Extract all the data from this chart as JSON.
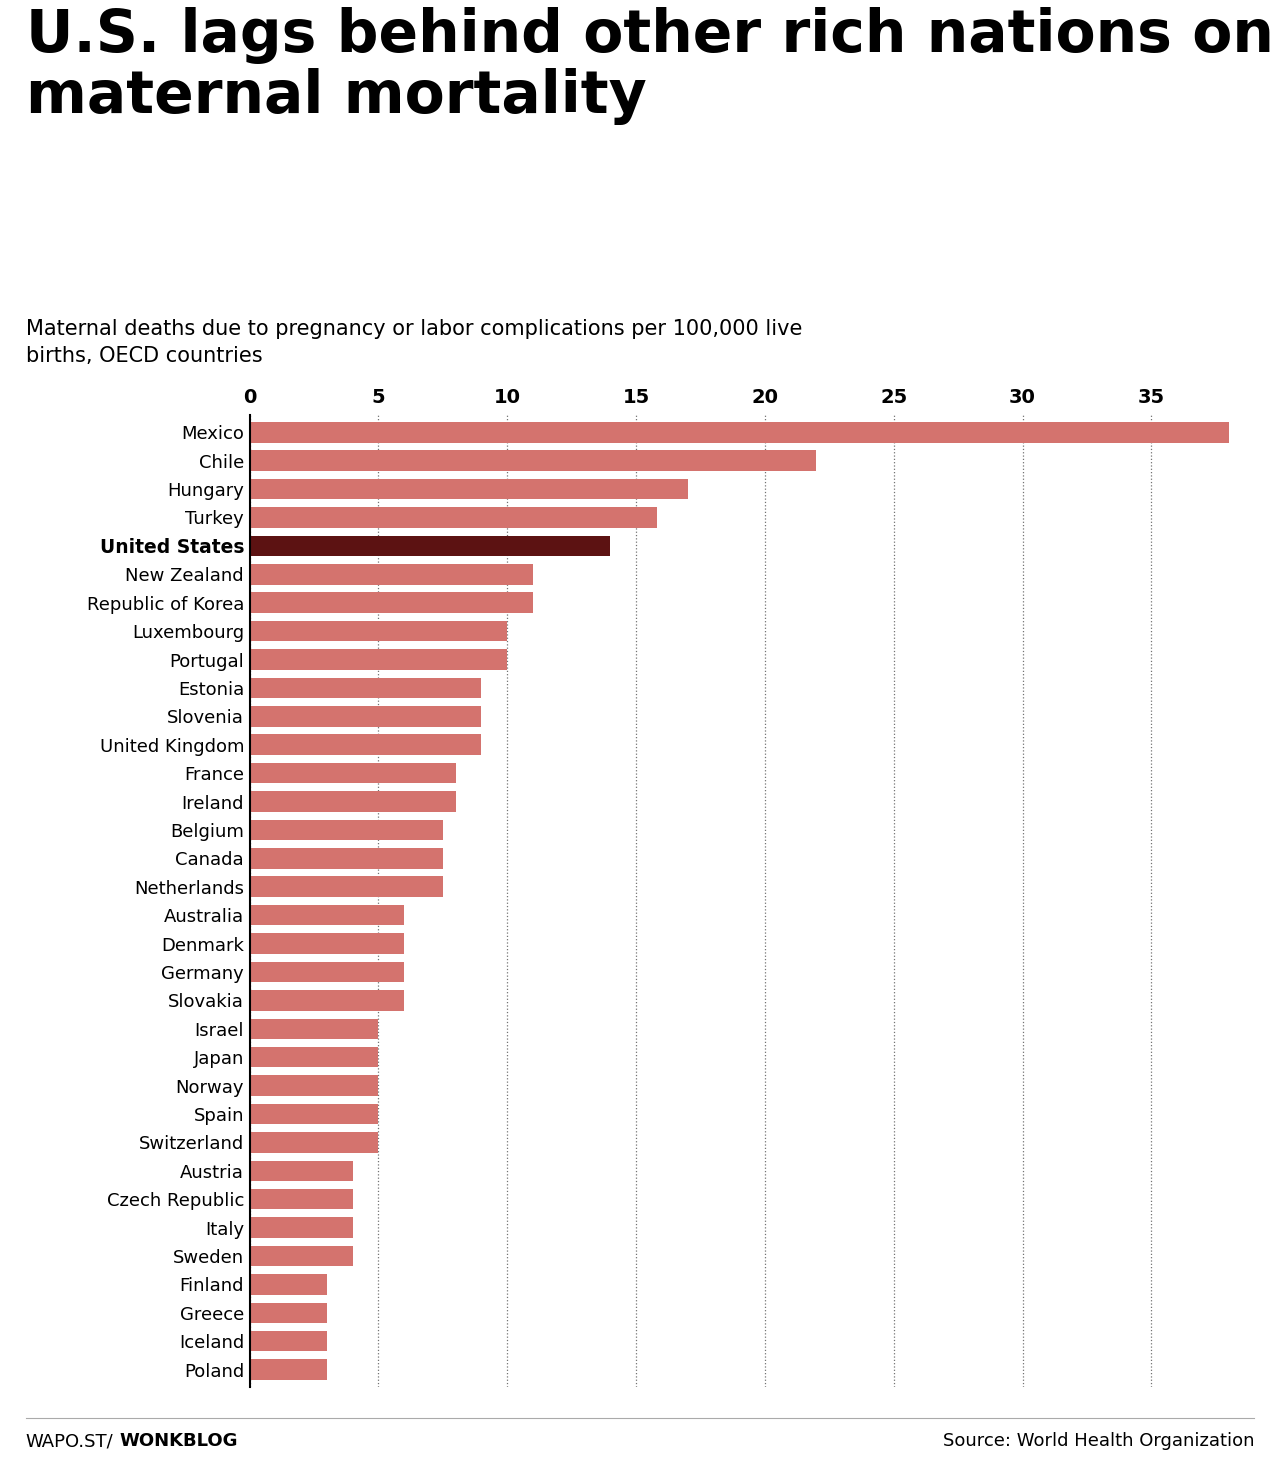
{
  "title": "U.S. lags behind other rich nations on\nmaternal mortality",
  "subtitle": "Maternal deaths due to pregnancy or labor complications per 100,000 live\nbirths, OECD countries",
  "countries": [
    "Mexico",
    "Chile",
    "Hungary",
    "Turkey",
    "United States",
    "New Zealand",
    "Republic of Korea",
    "Luxembourg",
    "Portugal",
    "Estonia",
    "Slovenia",
    "United Kingdom",
    "France",
    "Ireland",
    "Belgium",
    "Canada",
    "Netherlands",
    "Australia",
    "Denmark",
    "Germany",
    "Slovakia",
    "Israel",
    "Japan",
    "Norway",
    "Spain",
    "Switzerland",
    "Austria",
    "Czech Republic",
    "Italy",
    "Sweden",
    "Finland",
    "Greece",
    "Iceland",
    "Poland"
  ],
  "values": [
    38.0,
    22.0,
    17.0,
    15.8,
    14.0,
    11.0,
    11.0,
    10.0,
    10.0,
    9.0,
    9.0,
    9.0,
    8.0,
    8.0,
    7.5,
    7.5,
    7.5,
    6.0,
    6.0,
    6.0,
    6.0,
    5.0,
    5.0,
    5.0,
    5.0,
    5.0,
    4.0,
    4.0,
    4.0,
    4.0,
    3.0,
    3.0,
    3.0,
    3.0
  ],
  "highlight_country": "United States",
  "bar_color": "#d4736e",
  "highlight_color": "#5c1212",
  "background_color": "#ffffff",
  "xlim": [
    0,
    39
  ],
  "xticks": [
    0,
    5,
    10,
    15,
    20,
    25,
    30,
    35
  ],
  "footer_left_normal": "WAPO.ST/",
  "footer_left_bold": "WONKBLOG",
  "footer_right": "Source: World Health Organization",
  "title_fontsize": 42,
  "subtitle_fontsize": 15,
  "tick_fontsize": 14,
  "country_fontsize": 13,
  "footer_fontsize": 13
}
